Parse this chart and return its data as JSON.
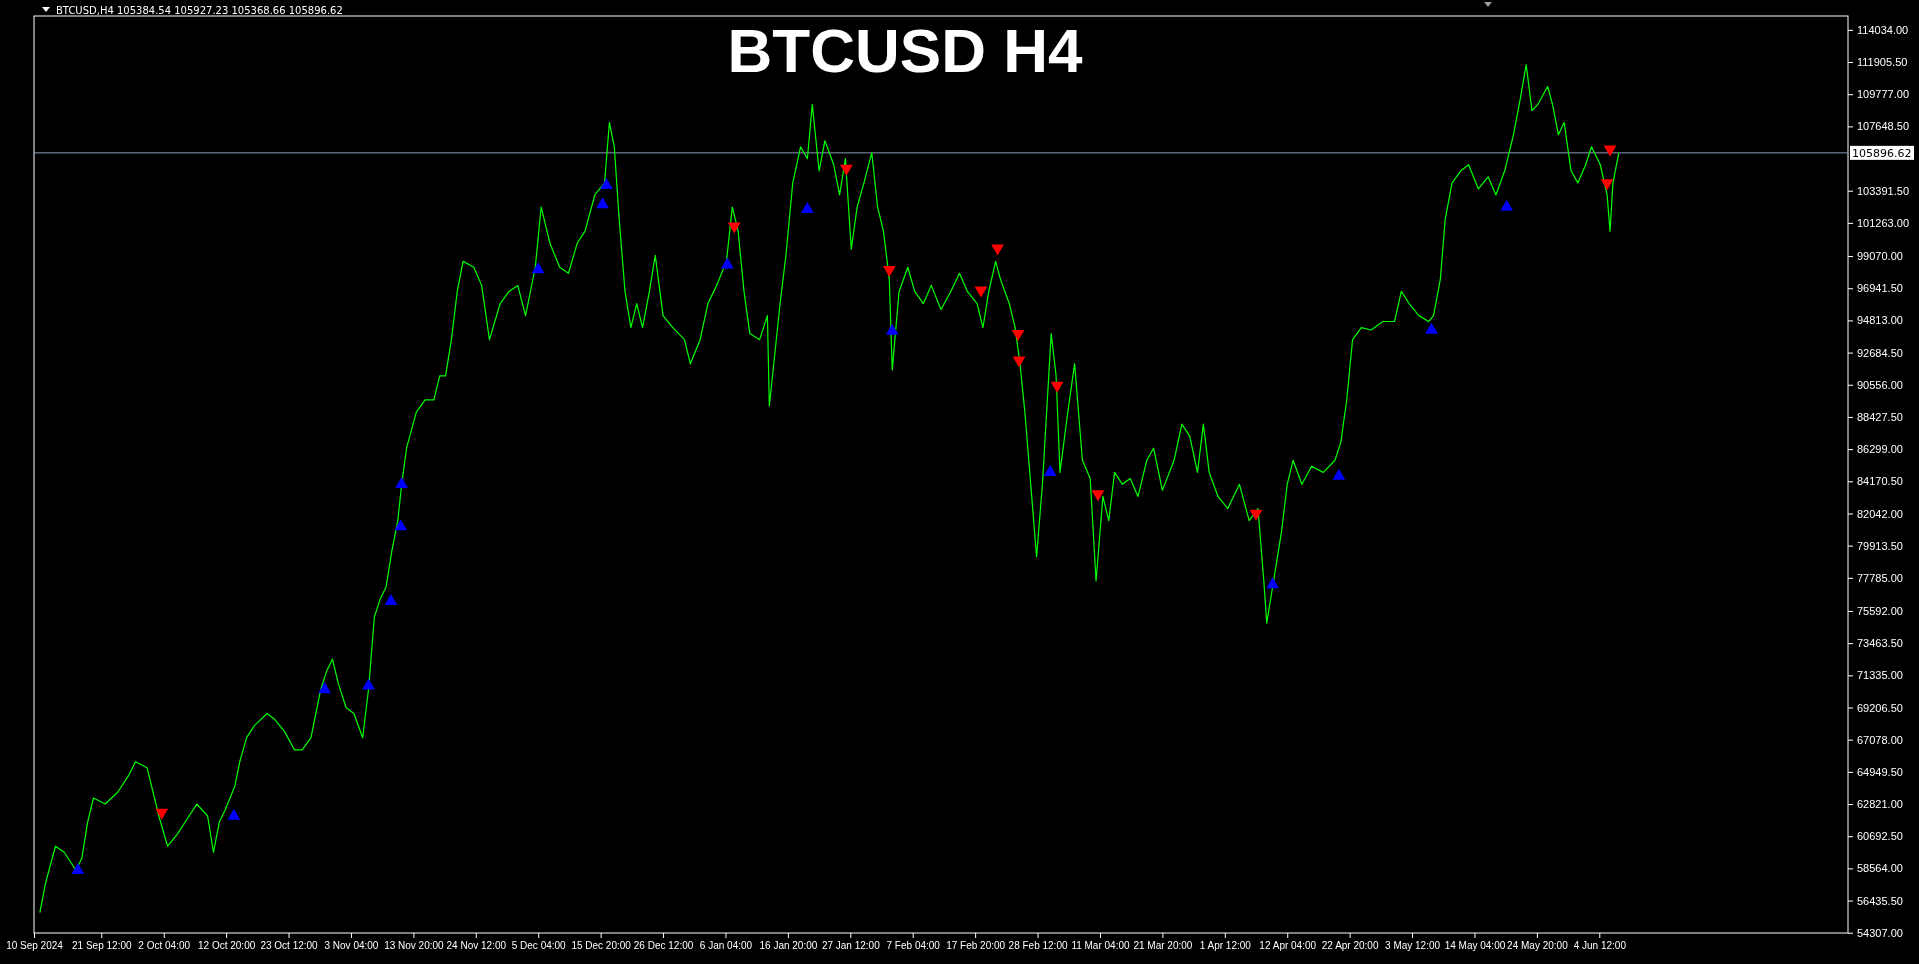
{
  "chart_data": {
    "type": "line",
    "title": "BTCUSD H4",
    "annotations": [
      "BTCUSD,H4  105384.54 105927.23 105368.66 105896.62"
    ],
    "xlim": [
      "2024-09-10T00:00",
      "2025-07-17T00:00"
    ],
    "ylim": [
      54290,
      114950
    ],
    "xticks": [
      {
        "value": "2024-09-10T00:00",
        "label": "10 Sep 2024"
      },
      {
        "value": "2024-09-21T12:00",
        "label": "21 Sep 12:00"
      },
      {
        "value": "2024-10-02T04:00",
        "label": "2 Oct 04:00"
      },
      {
        "value": "2024-10-12T20:00",
        "label": "12 Oct 20:00"
      },
      {
        "value": "2024-10-23T12:00",
        "label": "23 Oct 12:00"
      },
      {
        "value": "2024-11-03T04:00",
        "label": "3 Nov 04:00"
      },
      {
        "value": "2024-11-13T20:00",
        "label": "13 Nov 20:00"
      },
      {
        "value": "2024-11-24T12:00",
        "label": "24 Nov 12:00"
      },
      {
        "value": "2024-12-05T04:00",
        "label": "5 Dec 04:00"
      },
      {
        "value": "2024-12-15T20:00",
        "label": "15 Dec 20:00"
      },
      {
        "value": "2024-12-26T12:00",
        "label": "26 Dec 12:00"
      },
      {
        "value": "2025-01-06T04:00",
        "label": "6 Jan 04:00"
      },
      {
        "value": "2025-01-16T20:00",
        "label": "16 Jan 20:00"
      },
      {
        "value": "2025-01-27T12:00",
        "label": "27 Jan 12:00"
      },
      {
        "value": "2025-02-07T04:00",
        "label": "7 Feb 04:00"
      },
      {
        "value": "2025-02-17T20:00",
        "label": "17 Feb 20:00"
      },
      {
        "value": "2025-02-28T12:00",
        "label": "28 Feb 12:00"
      },
      {
        "value": "2025-03-11T04:00",
        "label": "11 Mar 04:00"
      },
      {
        "value": "2025-03-21T20:00",
        "label": "21 Mar 20:00"
      },
      {
        "value": "2025-04-01T12:00",
        "label": "1 Apr 12:00"
      },
      {
        "value": "2025-04-12T04:00",
        "label": "12 Apr 04:00"
      },
      {
        "value": "2025-04-22T20:00",
        "label": "22 Apr 20:00"
      },
      {
        "value": "2025-05-03T12:00",
        "label": "3 May 12:00"
      },
      {
        "value": "2025-05-14T04:00",
        "label": "14 May 04:00"
      },
      {
        "value": "2025-05-24T20:00",
        "label": "24 May 20:00"
      },
      {
        "value": "2025-06-04T12:00",
        "label": "4 Jun 12:00"
      }
    ],
    "yticks": [
      {
        "value": 114034,
        "label": "114034.00"
      },
      {
        "value": 111905.5,
        "label": "111905.50"
      },
      {
        "value": 109777,
        "label": "109777.00"
      },
      {
        "value": 107648.5,
        "label": "107648.50"
      },
      {
        "value": 103391.5,
        "label": "103391.50"
      },
      {
        "value": 101263,
        "label": "101263.00"
      },
      {
        "value": 99070,
        "label": "99070.00"
      },
      {
        "value": 96941.5,
        "label": "96941.50"
      },
      {
        "value": 94813,
        "label": "94813.00"
      },
      {
        "value": 92684.5,
        "label": "92684.50"
      },
      {
        "value": 90556,
        "label": "90556.00"
      },
      {
        "value": 88427.5,
        "label": "88427.50"
      },
      {
        "value": 86299,
        "label": "86299.00"
      },
      {
        "value": 84170.5,
        "label": "84170.50"
      },
      {
        "value": 82042,
        "label": "82042.00"
      },
      {
        "value": 79913.5,
        "label": "79913.50"
      },
      {
        "value": 77785,
        "label": "77785.00"
      },
      {
        "value": 75592,
        "label": "75592.00"
      },
      {
        "value": 73463.5,
        "label": "73463.50"
      },
      {
        "value": 71335,
        "label": "71335.00"
      },
      {
        "value": 69206.5,
        "label": "69206.50"
      },
      {
        "value": 67078,
        "label": "67078.00"
      },
      {
        "value": 64949.5,
        "label": "64949.50"
      },
      {
        "value": 62821,
        "label": "62821.00"
      },
      {
        "value": 60692.5,
        "label": "60692.50"
      },
      {
        "value": 58564,
        "label": "58564.00"
      },
      {
        "value": 56435.5,
        "label": "56435.50"
      },
      {
        "value": 54307,
        "label": "54307.00"
      }
    ],
    "grid": false,
    "ref_lines": [
      {
        "axis": "y",
        "value": 105896.62,
        "label": "105896.62",
        "color": "#8c9cb4"
      }
    ],
    "series": [
      {
        "type": "line",
        "color": "#00ff00",
        "marker": "none",
        "x": [
          "2024-09-11T00:00",
          "2024-09-12T00:00",
          "2024-09-13T16:00",
          "2024-09-15T04:00",
          "2024-09-17T04:00",
          "2024-09-18T04:00",
          "2024-09-19T04:00",
          "2024-09-20T04:00",
          "2024-09-22T04:00",
          "2024-09-24T08:00",
          "2024-09-26T08:00",
          "2024-09-27T08:00",
          "2024-09-29T08:00",
          "2024-09-30T08:00",
          "2024-10-01T08:00",
          "2024-10-02T20:00",
          "2024-10-04T12:00",
          "2024-10-06T12:00",
          "2024-10-07T20:00",
          "2024-10-09T16:00",
          "2024-10-10T16:00",
          "2024-10-11T16:00",
          "2024-10-12T16:00",
          "2024-10-14T08:00",
          "2024-10-15T04:00",
          "2024-10-16T08:00",
          "2024-10-17T16:00",
          "2024-10-19T20:00",
          "2024-10-21T04:00",
          "2024-10-22T20:00",
          "2024-10-24T12:00",
          "2024-10-25T20:00",
          "2024-10-27T08:00",
          "2024-10-29T00:00",
          "2024-10-30T00:00",
          "2024-10-31T00:00",
          "2024-11-01T00:00",
          "2024-11-02T08:00",
          "2024-11-03T16:00",
          "2024-11-05T04:00",
          "2024-11-06T04:00",
          "2024-11-07T04:00",
          "2024-11-08T04:00",
          "2024-11-09T04:00",
          "2024-11-10T04:00",
          "2024-11-11T04:00",
          "2024-11-11T20:00",
          "2024-11-12T16:00",
          "2024-11-14T08:00",
          "2024-11-15T20:00",
          "2024-11-17T08:00",
          "2024-11-18T08:00",
          "2024-11-19T08:00",
          "2024-11-20T08:00",
          "2024-11-21T08:00",
          "2024-11-22T08:00",
          "2024-11-24T04:00",
          "2024-11-25T12:00",
          "2024-11-26T20:00",
          "2024-11-28T16:00",
          "2024-11-30T04:00",
          "2024-12-01T16:00",
          "2024-12-03T00:00",
          "2024-12-04T16:00",
          "2024-12-05T16:00",
          "2024-12-07T04:00",
          "2024-12-08T20:00",
          "2024-12-10T08:00",
          "2024-12-11T20:00",
          "2024-12-13T04:00",
          "2024-12-14T20:00",
          "2024-12-16T12:00",
          "2024-12-17T08:00",
          "2024-12-18T04:00",
          "2024-12-19T00:00",
          "2024-12-20T00:00",
          "2024-12-21T00:00",
          "2024-12-22T00:00",
          "2024-12-23T00:00",
          "2024-12-24T04:00",
          "2024-12-25T04:00",
          "2024-12-26T12:00",
          "2024-12-28T04:00",
          "2024-12-30T04:00",
          "2024-12-31T04:00",
          "2025-01-01T20:00",
          "2025-01-03T04:00",
          "2025-01-04T16:00",
          "2025-01-06T08:00",
          "2025-01-07T08:00",
          "2025-01-08T08:00",
          "2025-01-09T08:00",
          "2025-01-10T08:00",
          "2025-01-12T00:00",
          "2025-01-13T08:00",
          "2025-01-13T16:00",
          "2025-01-15T12:00",
          "2025-01-16T12:00",
          "2025-01-17T16:00",
          "2025-01-19T00:00",
          "2025-01-20T04:00",
          "2025-01-21T00:00",
          "2025-01-22T04:00",
          "2025-01-23T04:00",
          "2025-01-24T16:00",
          "2025-01-25T16:00",
          "2025-01-26T16:00",
          "2025-01-27T16:00",
          "2025-01-28T16:00",
          "2025-01-29T20:00",
          "2025-01-31T04:00",
          "2025-02-01T04:00",
          "2025-02-02T04:00",
          "2025-02-03T04:00",
          "2025-02-03T16:00",
          "2025-02-04T20:00",
          "2025-02-06T08:00",
          "2025-02-07T12:00",
          "2025-02-09T00:00",
          "2025-02-10T08:00",
          "2025-02-12T00:00",
          "2025-02-13T16:00",
          "2025-02-15T04:00",
          "2025-02-16T12:00",
          "2025-02-18T04:00",
          "2025-02-19T04:00",
          "2025-02-20T04:00",
          "2025-02-21T08:00",
          "2025-02-22T04:00",
          "2025-02-23T16:00",
          "2025-02-24T16:00",
          "2025-02-25T12:00",
          "2025-02-26T08:00",
          "2025-02-27T08:00",
          "2025-02-28T08:00",
          "2025-03-01T08:00",
          "2025-03-02T20:00",
          "2025-03-03T16:00",
          "2025-03-04T08:00",
          "2025-03-05T16:00",
          "2025-03-06T20:00",
          "2025-03-08T04:00",
          "2025-03-09T12:00",
          "2025-03-10T12:00",
          "2025-03-11T16:00",
          "2025-03-12T16:00",
          "2025-03-13T16:00",
          "2025-03-15T00:00",
          "2025-03-16T08:00",
          "2025-03-17T16:00",
          "2025-03-19T04:00",
          "2025-03-20T08:00",
          "2025-03-21T20:00",
          "2025-03-23T20:00",
          "2025-03-25T04:00",
          "2025-03-26T12:00",
          "2025-03-27T20:00",
          "2025-03-28T20:00",
          "2025-03-29T20:00",
          "2025-03-31T08:00",
          "2025-04-02T00:00",
          "2025-04-04T00:00",
          "2025-04-05T16:00",
          "2025-04-07T04:00",
          "2025-04-08T04:00",
          "2025-04-08T16:00",
          "2025-04-10T04:00",
          "2025-04-11T04:00",
          "2025-04-12T04:00",
          "2025-04-13T04:00",
          "2025-04-14T16:00",
          "2025-04-16T08:00",
          "2025-04-18T08:00",
          "2025-04-20T08:00",
          "2025-04-21T08:00",
          "2025-04-22T08:00",
          "2025-04-23T08:00",
          "2025-04-24T20:00",
          "2025-04-26T12:00",
          "2025-04-28T12:00",
          "2025-04-30T12:00",
          "2025-05-01T16:00",
          "2025-05-03T00:00",
          "2025-05-04T16:00",
          "2025-05-06T08:00",
          "2025-05-07T04:00",
          "2025-05-08T08:00",
          "2025-05-09T04:00",
          "2025-05-10T08:00",
          "2025-05-11T20:00",
          "2025-05-13T04:00",
          "2025-05-14T20:00",
          "2025-05-16T12:00",
          "2025-05-17T20:00",
          "2025-05-19T08:00",
          "2025-05-20T20:00",
          "2025-05-22T00:00",
          "2025-05-23T00:00",
          "2025-05-24T00:00",
          "2025-05-25T00:00",
          "2025-05-26T16:00",
          "2025-05-27T12:00",
          "2025-05-28T12:00",
          "2025-05-29T12:00",
          "2025-05-30T16:00",
          "2025-05-31T20:00",
          "2025-06-02T04:00",
          "2025-06-03T04:00",
          "2025-06-04T16:00",
          "2025-06-05T20:00",
          "2025-06-06T08:00",
          "2025-06-06T20:00",
          "2025-06-07T20:00"
        ],
        "values": [
          55640,
          57640,
          60030,
          59630,
          58440,
          59230,
          61630,
          63220,
          62820,
          63620,
          64820,
          65620,
          65220,
          63620,
          62030,
          60030,
          60830,
          62030,
          62820,
          62030,
          59630,
          61630,
          62420,
          64020,
          65620,
          67210,
          68010,
          68810,
          68410,
          67610,
          66410,
          66410,
          67210,
          70400,
          71600,
          72400,
          70800,
          69210,
          68810,
          67210,
          70400,
          75190,
          76390,
          77180,
          79580,
          81570,
          83970,
          86360,
          88750,
          89550,
          89550,
          91150,
          91150,
          93540,
          96730,
          98720,
          98330,
          97130,
          93540,
          95930,
          96730,
          97130,
          95130,
          98330,
          102310,
          99920,
          98330,
          97930,
          99920,
          100720,
          103110,
          103910,
          107900,
          106300,
          101520,
          96730,
          94340,
          95930,
          94340,
          96730,
          99120,
          95130,
          94340,
          93540,
          91940,
          93540,
          95930,
          97130,
          98720,
          102310,
          100720,
          96730,
          93940,
          93540,
          95130,
          89150,
          95930,
          99120,
          103910,
          106300,
          105510,
          109100,
          104710,
          106700,
          105110,
          103110,
          105510,
          99520,
          102310,
          103910,
          105900,
          102310,
          100720,
          97530,
          91540,
          96730,
          98330,
          96730,
          95930,
          97130,
          95530,
          96730,
          97930,
          96730,
          95930,
          94340,
          96730,
          98720,
          97530,
          95930,
          94340,
          91940,
          88750,
          83970,
          79180,
          83970,
          93940,
          91150,
          84760,
          88750,
          91940,
          85560,
          84360,
          77580,
          83170,
          81570,
          84760,
          83970,
          84360,
          83170,
          85560,
          86360,
          83570,
          85560,
          87950,
          87160,
          84760,
          87950,
          84760,
          83170,
          82370,
          83970,
          81570,
          82370,
          77580,
          74790,
          78380,
          80770,
          83970,
          85560,
          83970,
          85160,
          84760,
          85560,
          86760,
          89550,
          93540,
          94340,
          94180,
          94740,
          94740,
          96730,
          95930,
          95130,
          94740,
          95130,
          97530,
          101520,
          103910,
          104710,
          105110,
          103510,
          104310,
          103110,
          104710,
          107100,
          109490,
          111730,
          108700,
          109100,
          110290,
          109100,
          107100,
          107900,
          104710,
          103910,
          105110,
          106300,
          105110,
          103110,
          100720,
          103910,
          105900
        ]
      },
      {
        "type": "scatter",
        "color": "#0000ff",
        "marker": "triangle",
        "x": [
          "2024-09-17T12:00",
          "2024-10-14T04:00",
          "2024-10-29T16:00",
          "2024-11-06T04:00",
          "2024-11-10T00:00",
          "2024-11-11T16:00",
          "2024-11-11T20:00",
          "2024-12-05T04:00",
          "2024-12-16T04:00",
          "2024-12-16T20:00",
          "2025-01-06T12:00",
          "2025-01-20T04:00",
          "2025-02-03T16:00",
          "2025-03-02T16:00",
          "2025-04-09T16:00",
          "2025-04-21T00:00",
          "2025-05-06T20:00",
          "2025-05-19T16:00"
        ],
        "values": [
          58440,
          62030,
          70400,
          70640,
          76230,
          81170,
          83970,
          98170,
          102470,
          103750,
          98490,
          102160,
          94100,
          84760,
          77340,
          84520,
          94180,
          102310
        ]
      },
      {
        "type": "scatter",
        "color": "#ff0000",
        "marker": "triangle",
        "x": [
          "2024-10-01T20:00",
          "2025-01-07T16:00",
          "2025-01-26T20:00",
          "2025-02-03T04:00",
          "2025-02-18T20:00",
          "2025-02-21T16:00",
          "2025-02-25T04:00",
          "2025-02-25T08:00",
          "2025-03-03T20:00",
          "2025-03-10T20:00",
          "2025-04-06T20:00",
          "2025-06-06T08:00",
          "2025-06-05T20:00"
        ],
        "values": [
          62270,
          101040,
          104870,
          98170,
          96810,
          99600,
          93940,
          92180,
          90510,
          83330,
          82050,
          106140,
          103910
        ]
      }
    ]
  }
}
